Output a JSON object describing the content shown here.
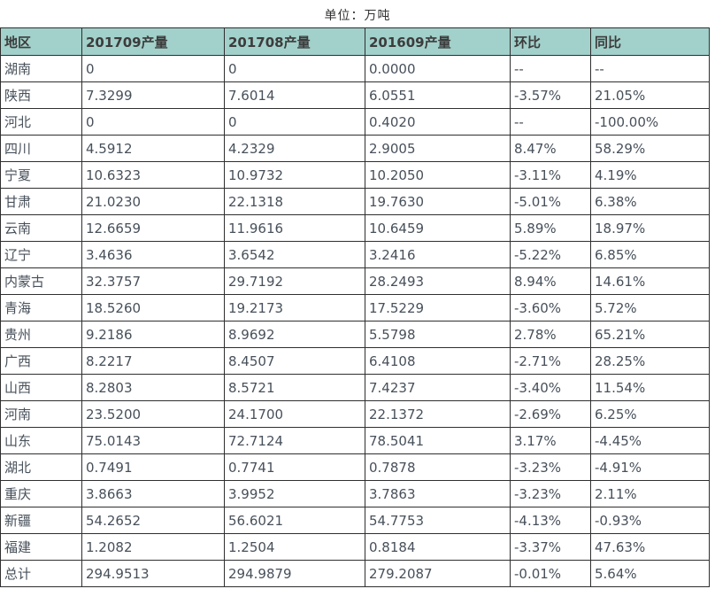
{
  "title": "单位：万吨",
  "colors": {
    "header_bg": "#a2d0ca",
    "border": "#2f2f2f",
    "cell_text": "#47505a",
    "title_text": "#333333"
  },
  "chart_data": {
    "type": "table",
    "title": "单位：万吨",
    "headers": [
      "地区",
      "201709产量",
      "201708产量",
      "201609产量",
      "环比",
      "同比"
    ],
    "rows": [
      [
        "湖南",
        "0",
        "0",
        "0.0000",
        "--",
        "--"
      ],
      [
        "陕西",
        "7.3299",
        "7.6014",
        "6.0551",
        "-3.57%",
        "21.05%"
      ],
      [
        "河北",
        "0",
        "0",
        "0.4020",
        "--",
        "-100.00%"
      ],
      [
        "四川",
        "4.5912",
        "4.2329",
        "2.9005",
        "8.47%",
        "58.29%"
      ],
      [
        "宁夏",
        "10.6323",
        "10.9732",
        "10.2050",
        "-3.11%",
        "4.19%"
      ],
      [
        "甘肃",
        "21.0230",
        "22.1318",
        "19.7630",
        "-5.01%",
        "6.38%"
      ],
      [
        "云南",
        "12.6659",
        "11.9616",
        "10.6459",
        "5.89%",
        "18.97%"
      ],
      [
        "辽宁",
        "3.4636",
        "3.6542",
        "3.2416",
        "-5.22%",
        "6.85%"
      ],
      [
        "内蒙古",
        "32.3757",
        "29.7192",
        "28.2493",
        "8.94%",
        "14.61%"
      ],
      [
        "青海",
        "18.5260",
        "19.2173",
        "17.5229",
        "-3.60%",
        "5.72%"
      ],
      [
        "贵州",
        "9.2186",
        "8.9692",
        "5.5798",
        "2.78%",
        "65.21%"
      ],
      [
        "广西",
        "8.2217",
        "8.4507",
        "6.4108",
        "-2.71%",
        "28.25%"
      ],
      [
        "山西",
        "8.2803",
        "8.5721",
        "7.4237",
        "-3.40%",
        "11.54%"
      ],
      [
        "河南",
        "23.5200",
        "24.1700",
        "22.1372",
        "-2.69%",
        "6.25%"
      ],
      [
        "山东",
        "75.0143",
        "72.7124",
        "78.5041",
        "3.17%",
        "-4.45%"
      ],
      [
        "湖北",
        "0.7491",
        "0.7741",
        "0.7878",
        "-3.23%",
        "-4.91%"
      ],
      [
        "重庆",
        "3.8663",
        "3.9952",
        "3.7863",
        "-3.23%",
        "2.11%"
      ],
      [
        "新疆",
        "54.2652",
        "56.6021",
        "54.7753",
        "-4.13%",
        "-0.93%"
      ],
      [
        "福建",
        "1.2082",
        "1.2504",
        "0.8184",
        "-3.37%",
        "47.63%"
      ],
      [
        "总计",
        "294.9513",
        "294.9879",
        "279.2087",
        "-0.01%",
        "5.64%"
      ]
    ]
  }
}
